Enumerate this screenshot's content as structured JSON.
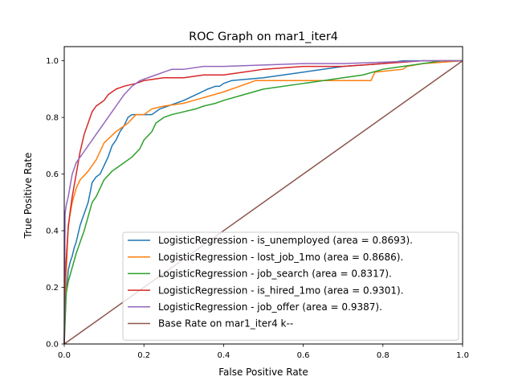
{
  "chart_data": {
    "type": "line",
    "title": "ROC Graph on mar1_iter4",
    "xlabel": "False Positive Rate",
    "ylabel": "True Positive Rate",
    "xlim": [
      0.0,
      1.0
    ],
    "ylim": [
      0.0,
      1.05
    ],
    "xticks": [
      0.0,
      0.2,
      0.4,
      0.6,
      0.8,
      1.0
    ],
    "xtick_labels": [
      "0.0",
      "0.2",
      "0.4",
      "0.6",
      "0.8",
      "1.0"
    ],
    "yticks": [
      0.0,
      0.2,
      0.4,
      0.6,
      0.8,
      1.0
    ],
    "ytick_labels": [
      "0.0",
      "0.2",
      "0.4",
      "0.6",
      "0.8",
      "1.0"
    ],
    "grid": false,
    "legend_position": "lower-right",
    "series": [
      {
        "name": "LogisticRegression - is_unemployed (area = 0.8693).",
        "color": "#1f77b4",
        "x": [
          0,
          0.002,
          0.005,
          0.008,
          0.01,
          0.015,
          0.02,
          0.025,
          0.03,
          0.035,
          0.04,
          0.05,
          0.06,
          0.07,
          0.08,
          0.09,
          0.1,
          0.11,
          0.12,
          0.13,
          0.14,
          0.15,
          0.16,
          0.17,
          0.18,
          0.2,
          0.22,
          0.24,
          0.26,
          0.28,
          0.3,
          0.33,
          0.36,
          0.38,
          0.39,
          0.4,
          0.42,
          0.5,
          0.6,
          0.7,
          0.8,
          0.85,
          0.9,
          1.0
        ],
        "y": [
          0,
          0.16,
          0.2,
          0.22,
          0.26,
          0.29,
          0.31,
          0.34,
          0.36,
          0.39,
          0.42,
          0.46,
          0.5,
          0.57,
          0.59,
          0.6,
          0.63,
          0.66,
          0.7,
          0.72,
          0.75,
          0.77,
          0.8,
          0.81,
          0.81,
          0.81,
          0.81,
          0.83,
          0.84,
          0.85,
          0.86,
          0.88,
          0.9,
          0.91,
          0.91,
          0.92,
          0.93,
          0.94,
          0.96,
          0.98,
          0.99,
          1.0,
          1.0,
          1.0
        ]
      },
      {
        "name": "LogisticRegression - lost_job_1mo (area = 0.8686).",
        "color": "#ff7f0e",
        "x": [
          0,
          0.005,
          0.01,
          0.02,
          0.03,
          0.04,
          0.06,
          0.08,
          0.1,
          0.13,
          0.16,
          0.18,
          0.2,
          0.22,
          0.25,
          0.3,
          0.35,
          0.4,
          0.48,
          0.6,
          0.7,
          0.77,
          0.78,
          0.85,
          0.86,
          0.9,
          1.0
        ],
        "y": [
          0,
          0.25,
          0.42,
          0.5,
          0.55,
          0.58,
          0.61,
          0.65,
          0.71,
          0.75,
          0.78,
          0.81,
          0.81,
          0.83,
          0.84,
          0.85,
          0.87,
          0.89,
          0.93,
          0.93,
          0.93,
          0.93,
          0.96,
          0.97,
          0.98,
          0.99,
          1.0
        ]
      },
      {
        "name": "LogisticRegression - job_search (area = 0.8317).",
        "color": "#2ca02c",
        "x": [
          0,
          0.005,
          0.01,
          0.02,
          0.03,
          0.04,
          0.05,
          0.06,
          0.07,
          0.08,
          0.09,
          0.1,
          0.12,
          0.13,
          0.15,
          0.17,
          0.19,
          0.2,
          0.22,
          0.23,
          0.25,
          0.27,
          0.3,
          0.33,
          0.35,
          0.38,
          0.4,
          0.45,
          0.5,
          0.6,
          0.7,
          0.75,
          0.8,
          0.85,
          0.9,
          0.95,
          1.0
        ],
        "y": [
          0,
          0.18,
          0.22,
          0.27,
          0.32,
          0.36,
          0.4,
          0.45,
          0.5,
          0.52,
          0.55,
          0.58,
          0.61,
          0.62,
          0.64,
          0.66,
          0.69,
          0.72,
          0.75,
          0.78,
          0.8,
          0.81,
          0.82,
          0.83,
          0.84,
          0.85,
          0.86,
          0.88,
          0.9,
          0.92,
          0.94,
          0.95,
          0.97,
          0.98,
          0.99,
          1.0,
          1.0
        ]
      },
      {
        "name": "LogisticRegression - is_hired_1mo (area = 0.9301).",
        "color": "#d62728",
        "x": [
          0,
          0.002,
          0.005,
          0.01,
          0.015,
          0.02,
          0.025,
          0.03,
          0.035,
          0.04,
          0.045,
          0.05,
          0.06,
          0.07,
          0.08,
          0.09,
          0.1,
          0.11,
          0.12,
          0.13,
          0.15,
          0.18,
          0.2,
          0.25,
          0.3,
          0.35,
          0.4,
          0.45,
          0.5,
          0.6,
          0.7,
          0.8,
          0.9,
          1.0
        ],
        "y": [
          0,
          0.23,
          0.3,
          0.41,
          0.47,
          0.52,
          0.56,
          0.6,
          0.64,
          0.68,
          0.71,
          0.74,
          0.78,
          0.82,
          0.84,
          0.85,
          0.86,
          0.88,
          0.89,
          0.9,
          0.91,
          0.92,
          0.93,
          0.94,
          0.94,
          0.95,
          0.95,
          0.96,
          0.97,
          0.98,
          0.98,
          0.99,
          1.0,
          1.0
        ]
      },
      {
        "name": "LogisticRegression - job_offer (area = 0.9387).",
        "color": "#9467bd",
        "x": [
          0,
          0.002,
          0.005,
          0.01,
          0.015,
          0.02,
          0.025,
          0.03,
          0.04,
          0.05,
          0.06,
          0.07,
          0.08,
          0.09,
          0.1,
          0.11,
          0.12,
          0.13,
          0.14,
          0.15,
          0.17,
          0.19,
          0.21,
          0.23,
          0.25,
          0.27,
          0.3,
          0.35,
          0.4,
          0.5,
          0.6,
          0.7,
          0.8,
          0.9,
          1.0
        ],
        "y": [
          0,
          0.46,
          0.49,
          0.52,
          0.56,
          0.6,
          0.62,
          0.64,
          0.66,
          0.68,
          0.7,
          0.72,
          0.74,
          0.76,
          0.78,
          0.8,
          0.82,
          0.84,
          0.86,
          0.88,
          0.91,
          0.93,
          0.94,
          0.95,
          0.96,
          0.97,
          0.97,
          0.98,
          0.98,
          0.985,
          0.99,
          0.99,
          0.995,
          1.0,
          1.0
        ]
      },
      {
        "name": "Base Rate on mar1_iter4 k--",
        "color": "#8c564b",
        "x": [
          0,
          1
        ],
        "y": [
          0,
          1
        ]
      }
    ]
  }
}
